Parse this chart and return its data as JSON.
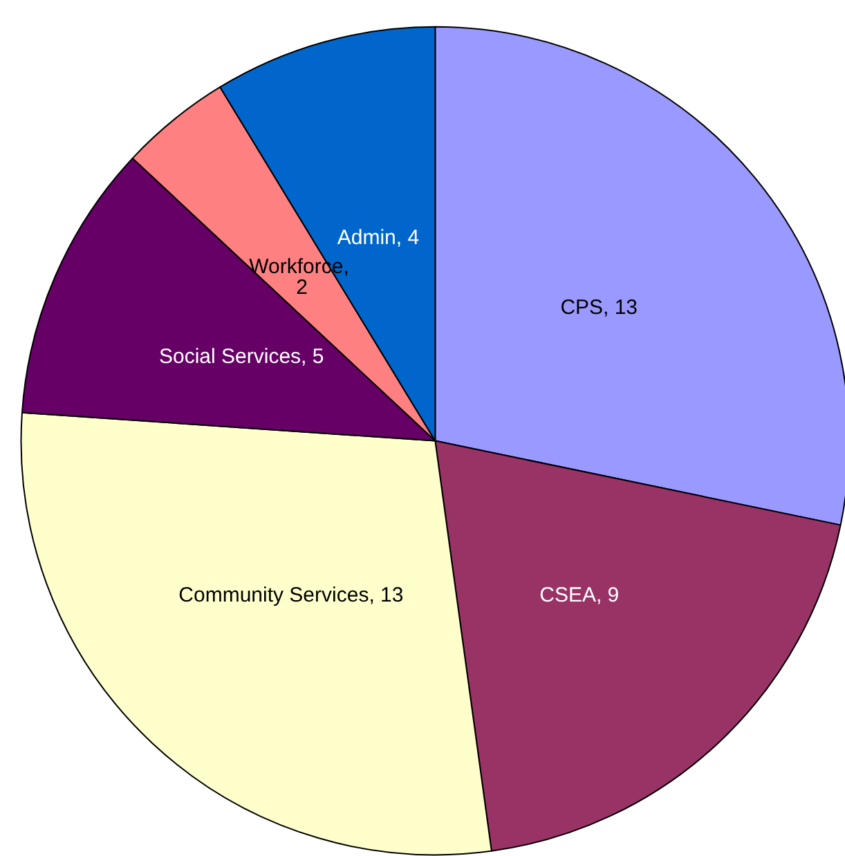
{
  "chart_data": {
    "type": "pie",
    "categories": [
      "CPS",
      "CSEA",
      "Community Services",
      "Social Services",
      "Workforce",
      "Admin"
    ],
    "values": [
      13,
      9,
      13,
      5,
      2,
      4
    ],
    "colors": [
      "#9999ff",
      "#993366",
      "#ffffcc",
      "#660066",
      "#ff8080",
      "#0066cc"
    ],
    "value_labels": [
      ", 13",
      ", 9",
      ", 13",
      ", 5",
      ", 2",
      ", 4"
    ],
    "legend": false
  }
}
